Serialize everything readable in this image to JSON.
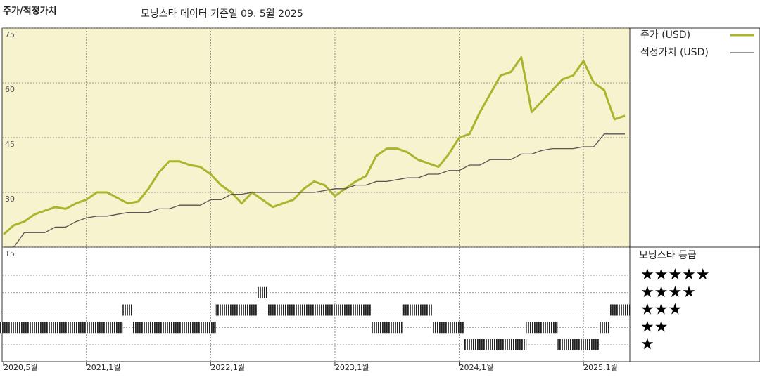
{
  "chart_data": {
    "type": "line",
    "title": "주가/적정가치",
    "subtitle": "모닝스타 데이터 기준일 09. 5월 2025",
    "x": [
      "2020-05",
      "2020-06",
      "2020-07",
      "2020-08",
      "2020-09",
      "2020-10",
      "2020-11",
      "2020-12",
      "2021-01",
      "2021-02",
      "2021-03",
      "2021-04",
      "2021-05",
      "2021-06",
      "2021-07",
      "2021-08",
      "2021-09",
      "2021-10",
      "2021-11",
      "2021-12",
      "2022-01",
      "2022-02",
      "2022-03",
      "2022-04",
      "2022-05",
      "2022-06",
      "2022-07",
      "2022-08",
      "2022-09",
      "2022-10",
      "2022-11",
      "2022-12",
      "2023-01",
      "2023-02",
      "2023-03",
      "2023-04",
      "2023-05",
      "2023-06",
      "2023-07",
      "2023-08",
      "2023-09",
      "2023-10",
      "2023-11",
      "2023-12",
      "2024-01",
      "2024-02",
      "2024-03",
      "2024-04",
      "2024-05",
      "2024-06",
      "2024-07",
      "2024-08",
      "2024-09",
      "2024-10",
      "2024-11",
      "2024-12",
      "2025-01",
      "2025-02",
      "2025-03",
      "2025-04",
      "2025-05"
    ],
    "series": [
      {
        "name": "주가 (USD)",
        "color": "#a9b52c",
        "width": 3,
        "values": [
          18.5,
          21,
          22,
          24,
          25,
          26,
          25.5,
          27,
          28,
          30,
          30,
          28.5,
          27,
          27.5,
          31,
          35.5,
          38.5,
          38.5,
          37.5,
          37,
          35,
          32,
          30,
          27,
          30,
          28,
          26,
          27,
          28,
          31,
          33,
          32,
          29,
          31,
          33,
          34.5,
          40,
          42,
          42,
          41,
          39,
          38,
          37,
          40.5,
          45,
          46,
          52,
          57,
          62,
          63,
          67,
          52,
          55,
          58,
          61,
          62,
          66,
          60,
          58,
          50,
          51
        ]
      },
      {
        "name": "적정가치 (USD)",
        "color": "#555555",
        "width": 1.3,
        "values": [
          15,
          15,
          19,
          19,
          19,
          20.5,
          20.5,
          22,
          23,
          23.5,
          23.5,
          24,
          24.5,
          24.5,
          24.5,
          25.5,
          25.5,
          26.5,
          26.5,
          26.5,
          28,
          28,
          29.5,
          29.5,
          30,
          30,
          30,
          30,
          30,
          30,
          30,
          30.5,
          31,
          31,
          32,
          32,
          33,
          33,
          33.5,
          34,
          34,
          35,
          35,
          36,
          36,
          37.5,
          37.5,
          39,
          39,
          39,
          40.5,
          40.5,
          41.5,
          42,
          42,
          42,
          42.5,
          42.5,
          46,
          46,
          46
        ]
      }
    ],
    "ylim": [
      15,
      75
    ],
    "yticks": [
      15,
      30,
      45,
      60,
      75
    ],
    "xticks": [
      {
        "value": "2020-05",
        "label": "2020,5월"
      },
      {
        "value": "2021-01",
        "label": "2021,1월"
      },
      {
        "value": "2022-01",
        "label": "2022,1월"
      },
      {
        "value": "2023-01",
        "label": "2023,1월"
      },
      {
        "value": "2024-01",
        "label": "2024,1월"
      },
      {
        "value": "2025-01",
        "label": "2025,1월"
      }
    ],
    "grid": true,
    "background": "#f7f3cf",
    "ratings": {
      "name": "모닝스타 등급",
      "levels": [
        {
          "value": 5,
          "label": "★★★★★"
        },
        {
          "value": 4,
          "label": "★★★★"
        },
        {
          "value": 3,
          "label": "★★★"
        },
        {
          "value": 2,
          "label": "★★"
        },
        {
          "value": 1,
          "label": "★"
        }
      ],
      "values": [
        2,
        2,
        2,
        2,
        2,
        2,
        2,
        2,
        2,
        2,
        2,
        2,
        3,
        2,
        2,
        2,
        2,
        2,
        2,
        2,
        2,
        3,
        3,
        3,
        3,
        4,
        3,
        3,
        3,
        3,
        3,
        3,
        3,
        3,
        3,
        3,
        2,
        2,
        2,
        3,
        3,
        3,
        2,
        2,
        2,
        1,
        1,
        1,
        1,
        1,
        1,
        2,
        2,
        2,
        1,
        1,
        1,
        1,
        2,
        3,
        3
      ]
    }
  }
}
